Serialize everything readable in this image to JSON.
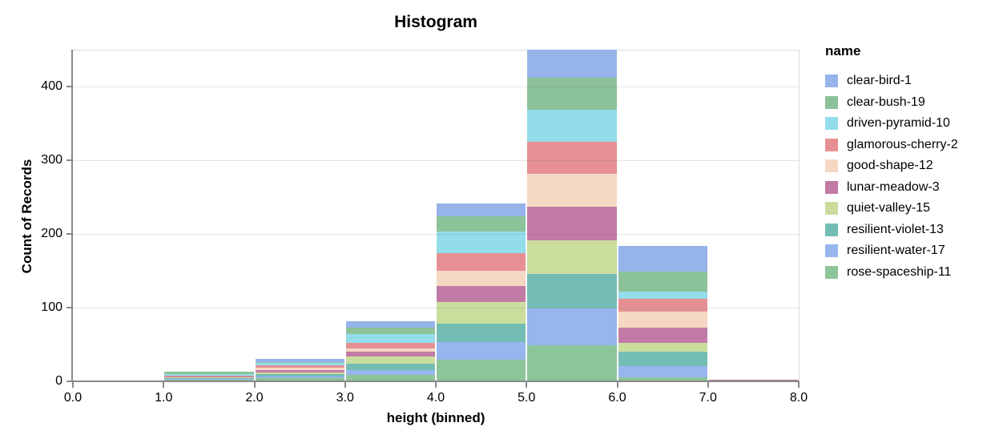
{
  "title": "Histogram",
  "chart_data": {
    "type": "bar",
    "stacked": true,
    "title": "Histogram",
    "xlabel": "height (binned)",
    "ylabel": "Count of Records",
    "legend_title": "name",
    "legend_position": "right",
    "grid": true,
    "xlim": [
      0,
      8
    ],
    "ylim": [
      0,
      450
    ],
    "x_ticks": [
      "0.0",
      "1.0",
      "2.0",
      "3.0",
      "4.0",
      "5.0",
      "6.0",
      "7.0",
      "8.0"
    ],
    "y_ticks": [
      0,
      100,
      200,
      300,
      400
    ],
    "bin_edges": [
      0,
      1,
      2,
      3,
      4,
      5,
      6,
      7,
      8
    ],
    "bin_totals": [
      1,
      13,
      30,
      82,
      241,
      450,
      184,
      2
    ],
    "series": [
      {
        "name": "clear-bird-1",
        "color": "#96b3ea",
        "values": [
          0,
          0,
          4,
          9,
          17,
          38,
          35,
          0
        ]
      },
      {
        "name": "clear-bush-19",
        "color": "#8cc299",
        "values": [
          0,
          3,
          1,
          9,
          21,
          44,
          27,
          0
        ]
      },
      {
        "name": "driven-pyramid-10",
        "color": "#93dcea",
        "values": [
          0,
          2,
          3,
          12,
          29,
          43,
          10,
          0
        ]
      },
      {
        "name": "glamorous-cherry-2",
        "color": "#e69094",
        "values": [
          0,
          2,
          3,
          7,
          24,
          44,
          17,
          0
        ]
      },
      {
        "name": "good-shape-12",
        "color": "#f5d8c3",
        "values": [
          0,
          0,
          4,
          5,
          21,
          44,
          22,
          0
        ]
      },
      {
        "name": "lunar-meadow-3",
        "color": "#c17ba5",
        "values": [
          0,
          1,
          3,
          6,
          21,
          46,
          21,
          1
        ]
      },
      {
        "name": "quiet-valley-15",
        "color": "#cadd9d",
        "values": [
          1,
          1,
          2,
          10,
          30,
          45,
          12,
          0
        ]
      },
      {
        "name": "resilient-violet-13",
        "color": "#74bdb4",
        "values": [
          0,
          1,
          3,
          9,
          25,
          47,
          19,
          0
        ]
      },
      {
        "name": "resilient-water-17",
        "color": "#97b6ee",
        "values": [
          0,
          1,
          3,
          6,
          24,
          50,
          16,
          1
        ]
      },
      {
        "name": "rose-spaceship-11",
        "color": "#8cc598",
        "values": [
          0,
          2,
          4,
          9,
          29,
          49,
          5,
          0
        ]
      }
    ],
    "colors": {
      "axis_line": "#888888",
      "gridline": "#dddddd",
      "text": "#000000"
    }
  }
}
